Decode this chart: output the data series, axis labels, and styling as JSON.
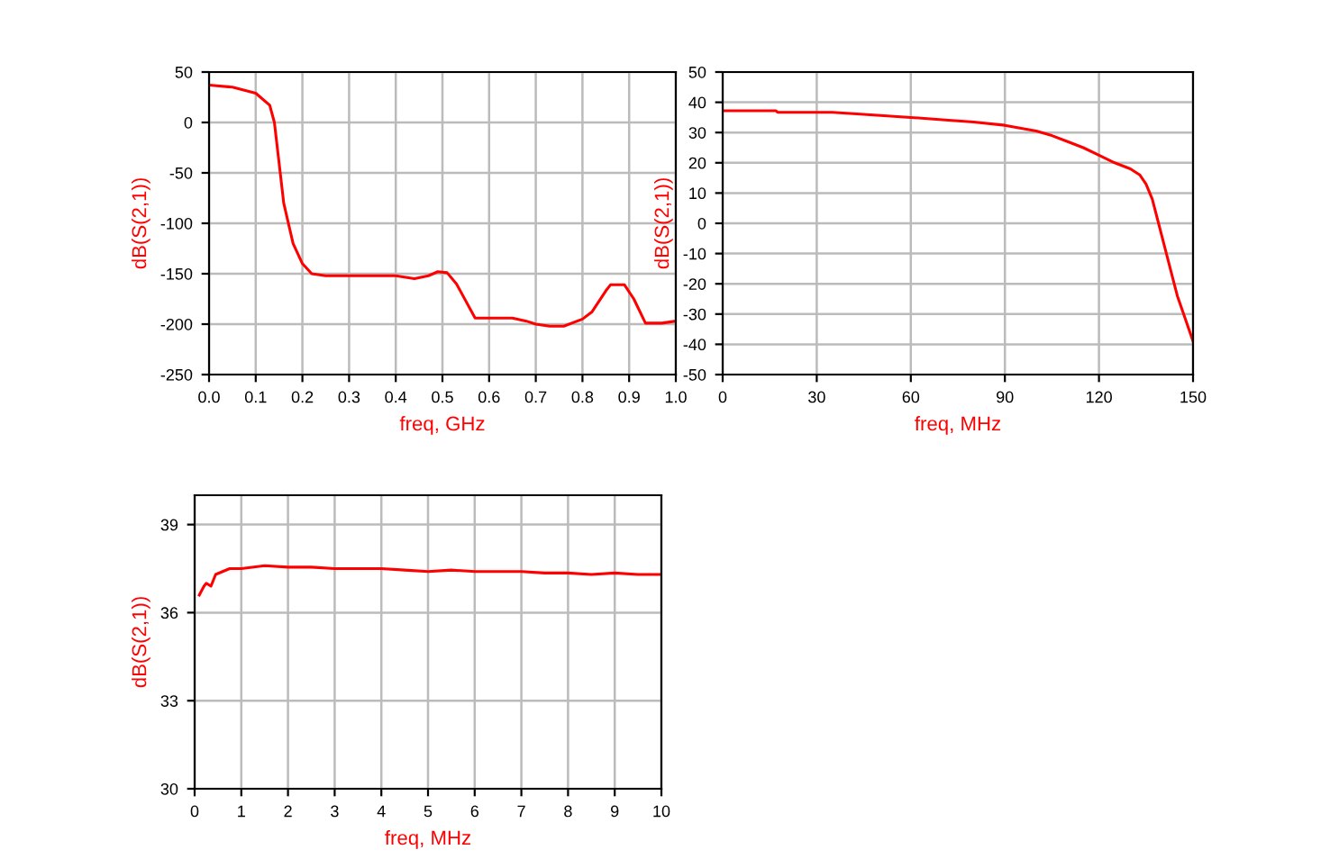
{
  "chart_data": [
    {
      "type": "line",
      "xlabel": "freq, GHz",
      "ylabel": "dB(S(2,1))",
      "grid": true,
      "xlim": [
        0,
        1
      ],
      "ylim": [
        -250,
        50
      ],
      "xticks": [
        {
          "value": 0,
          "label": "0.0"
        },
        {
          "value": 0.1,
          "label": "0.1"
        },
        {
          "value": 0.2,
          "label": "0.2"
        },
        {
          "value": 0.3,
          "label": "0.3"
        },
        {
          "value": 0.4,
          "label": "0.4"
        },
        {
          "value": 0.5,
          "label": "0.5"
        },
        {
          "value": 0.6,
          "label": "0.6"
        },
        {
          "value": 0.7,
          "label": "0.7"
        },
        {
          "value": 0.8,
          "label": "0.8"
        },
        {
          "value": 0.9,
          "label": "0.9"
        },
        {
          "value": 1,
          "label": "1.0"
        }
      ],
      "yticks": [
        -250,
        -200,
        -150,
        -100,
        -50,
        0,
        50
      ],
      "x": [
        0,
        0.05,
        0.1,
        0.13,
        0.14,
        0.15,
        0.16,
        0.18,
        0.2,
        0.22,
        0.25,
        0.3,
        0.4,
        0.44,
        0.47,
        0.49,
        0.51,
        0.53,
        0.57,
        0.6,
        0.65,
        0.68,
        0.7,
        0.73,
        0.76,
        0.8,
        0.82,
        0.85,
        0.86,
        0.89,
        0.91,
        0.935,
        0.97,
        1.0
      ],
      "series": [
        {
          "color": "#ff0000",
          "values": [
            37,
            35,
            29,
            17,
            0,
            -40,
            -80,
            -120,
            -140,
            -150,
            -152,
            -152,
            -152,
            -155,
            -152,
            -148,
            -149,
            -160,
            -194,
            -194,
            -194,
            -197,
            -200,
            -202,
            -202,
            -195,
            -188,
            -167,
            -161,
            -161,
            -175,
            -199,
            -199,
            -197
          ]
        }
      ]
    },
    {
      "type": "line",
      "xlabel": "freq, MHz",
      "ylabel": "dB(S(2,1))",
      "grid": true,
      "xlim": [
        0,
        150
      ],
      "ylim": [
        -50,
        50
      ],
      "xticks": [
        0,
        30,
        60,
        90,
        120,
        150
      ],
      "yticks": [
        -50,
        -40,
        -30,
        -20,
        -10,
        0,
        10,
        20,
        30,
        40,
        50
      ],
      "x": [
        0,
        17,
        17.5,
        35,
        45,
        60,
        70,
        80,
        90,
        100,
        105,
        110,
        115,
        120,
        125,
        130,
        133,
        135,
        137,
        139,
        141,
        143,
        145,
        147,
        149,
        150
      ],
      "series": [
        {
          "color": "#ff0000",
          "values": [
            37.2,
            37.2,
            36.7,
            36.7,
            36,
            35,
            34.2,
            33.5,
            32.4,
            30.5,
            29,
            27,
            25,
            22.5,
            20,
            18,
            16,
            13,
            8,
            0,
            -8,
            -16,
            -24,
            -30,
            -36,
            -39
          ]
        }
      ]
    },
    {
      "type": "line",
      "xlabel": "freq, MHz",
      "ylabel": "dB(S(2,1))",
      "grid": true,
      "xlim": [
        0,
        10
      ],
      "ylim": [
        30,
        40
      ],
      "xticks": [
        0,
        1,
        2,
        3,
        4,
        5,
        6,
        7,
        8,
        9,
        10
      ],
      "yticks": [
        30,
        33,
        36,
        39
      ],
      "x": [
        0.1,
        0.2,
        0.25,
        0.35,
        0.45,
        0.6,
        0.75,
        1,
        1.5,
        2,
        2.5,
        3,
        3.5,
        4,
        4.5,
        5,
        5.5,
        6,
        6.5,
        7,
        7.5,
        8,
        8.5,
        9,
        9.5,
        10
      ],
      "series": [
        {
          "color": "#ff0000",
          "values": [
            36.6,
            36.9,
            37,
            36.9,
            37.3,
            37.4,
            37.5,
            37.5,
            37.6,
            37.55,
            37.55,
            37.5,
            37.5,
            37.5,
            37.45,
            37.4,
            37.45,
            37.4,
            37.4,
            37.4,
            37.35,
            37.35,
            37.3,
            37.35,
            37.3,
            37.3
          ]
        }
      ]
    }
  ]
}
